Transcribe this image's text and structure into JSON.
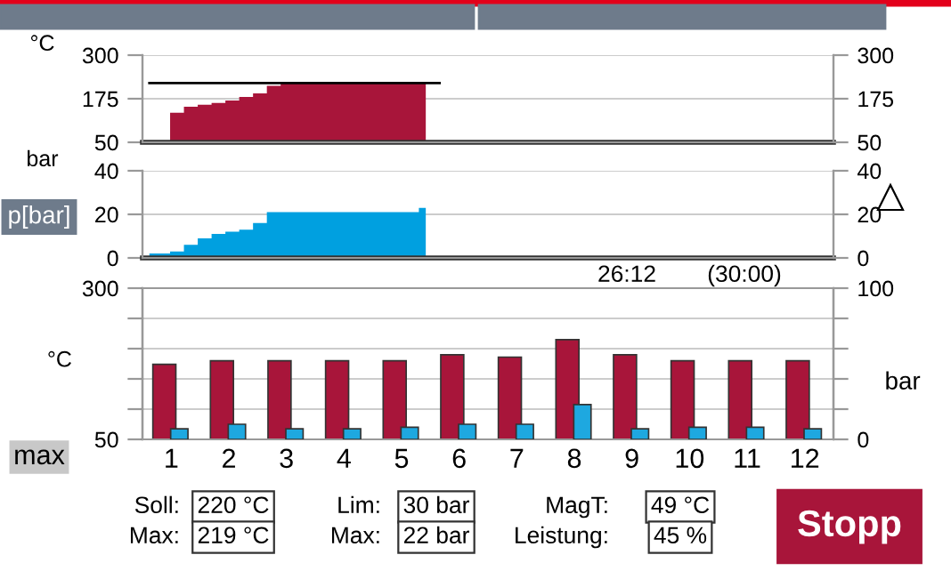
{
  "chart_data": [
    {
      "type": "area",
      "ylabel": "°C",
      "categories": [
        null,
        null,
        null,
        null,
        null,
        null,
        null,
        null,
        null,
        null,
        null,
        null,
        null,
        null,
        null,
        null,
        null,
        null,
        null,
        null,
        null,
        null,
        null,
        null,
        null,
        null,
        null,
        null,
        null,
        null,
        null,
        null,
        null,
        null,
        null,
        null,
        null,
        null,
        null,
        null,
        null,
        null,
        null,
        null,
        null,
        null,
        null,
        null,
        null,
        null
      ],
      "series": [
        {
          "color": "#a8153a",
          "values": [
            50,
            50,
            135,
            152,
            158,
            163,
            170,
            180,
            190,
            212,
            219,
            219,
            219,
            219,
            219,
            219,
            219,
            219,
            219,
            219,
            219,
            null,
            null,
            null,
            null,
            null,
            null,
            null,
            null,
            null,
            null,
            null,
            null,
            null,
            null,
            null,
            null,
            null,
            null,
            null,
            null,
            null,
            null,
            null,
            null,
            null,
            null,
            null,
            null,
            null
          ]
        },
        {
          "type": "line",
          "color": "#000000",
          "values": [
            220,
            220,
            220,
            220,
            220,
            220,
            220,
            220,
            220,
            220,
            220,
            220,
            220,
            220,
            220,
            220,
            220,
            220,
            220,
            220,
            220,
            220,
            null,
            null,
            null,
            null,
            null,
            null,
            null,
            null,
            null,
            null,
            null,
            null,
            null,
            null,
            null,
            null,
            null,
            null,
            null,
            null,
            null,
            null,
            null,
            null,
            null,
            null,
            null,
            null
          ]
        }
      ],
      "ylim": [
        50,
        300
      ],
      "yticks": [
        50,
        175,
        300
      ],
      "y2lim": [
        50,
        300
      ],
      "y2ticks": [
        50,
        175,
        300
      ],
      "grid": "y",
      "tick_labels": "y"
    },
    {
      "type": "area",
      "ylabel": "bar",
      "annotations": [
        "p[bar]",
        "26:12",
        "(30:00)"
      ],
      "categories": [
        null,
        null,
        null,
        null,
        null,
        null,
        null,
        null,
        null,
        null,
        null,
        null,
        null,
        null,
        null,
        null,
        null,
        null,
        null,
        null,
        null,
        null,
        null,
        null,
        null,
        null,
        null,
        null,
        null,
        null,
        null,
        null,
        null,
        null,
        null,
        null,
        null,
        null,
        null,
        null,
        null,
        null,
        null,
        null,
        null,
        null,
        null,
        null,
        null,
        null
      ],
      "series": [
        {
          "color": "#00a0e0",
          "values": [
            2,
            2,
            3,
            6,
            9,
            11,
            12,
            13,
            16,
            21,
            21,
            21,
            21,
            21,
            21,
            21,
            21,
            21,
            21,
            21,
            23,
            null,
            null,
            null,
            null,
            null,
            null,
            null,
            null,
            null,
            null,
            null,
            null,
            null,
            null,
            null,
            null,
            null,
            null,
            null,
            null,
            null,
            null,
            null,
            null,
            null,
            null,
            null,
            null,
            null
          ]
        }
      ],
      "ylim": [
        0,
        40
      ],
      "yticks": [
        0,
        20,
        40
      ],
      "y2lim": [
        0,
        40
      ],
      "y2ticks": [
        0,
        20,
        40
      ],
      "grid": "y",
      "tick_labels": "y"
    },
    {
      "type": "bar",
      "ylabel": "°C",
      "y2label": "bar",
      "categories": [
        "1",
        "2",
        "3",
        "4",
        "5",
        "6",
        "7",
        "8",
        "9",
        "10",
        "11",
        "12"
      ],
      "series": [
        {
          "color": "#a8153a",
          "values": [
            174,
            180,
            180,
            180,
            180,
            190,
            186,
            215,
            190,
            180,
            180,
            180
          ]
        },
        {
          "color": "#1ea8e0",
          "axis": "y2",
          "values": [
            7,
            10,
            7,
            7,
            8,
            10,
            10,
            23,
            7,
            8,
            8,
            7
          ]
        }
      ],
      "ylim": [
        50,
        300
      ],
      "yticks": [
        50,
        {
          "value": 100,
          "label": null
        },
        {
          "value": 150,
          "label": null
        },
        {
          "value": 200,
          "label": null
        },
        {
          "value": 250,
          "label": null
        },
        300
      ],
      "y2lim": [
        0,
        100
      ],
      "y2ticks": [
        0,
        {
          "value": 20,
          "label": null
        },
        {
          "value": 40,
          "label": null
        },
        {
          "value": 60,
          "label": null
        },
        {
          "value": 80,
          "label": null
        },
        100
      ],
      "grid": "y",
      "annotations": [
        "max",
        "Soll:",
        "220 °C",
        "Max:",
        "219 °C",
        "Lim:",
        "30 bar",
        "Max:",
        "22 bar",
        "MagT:",
        "49 °C",
        "Leistung:",
        "45 %",
        "Stopp"
      ]
    }
  ]
}
